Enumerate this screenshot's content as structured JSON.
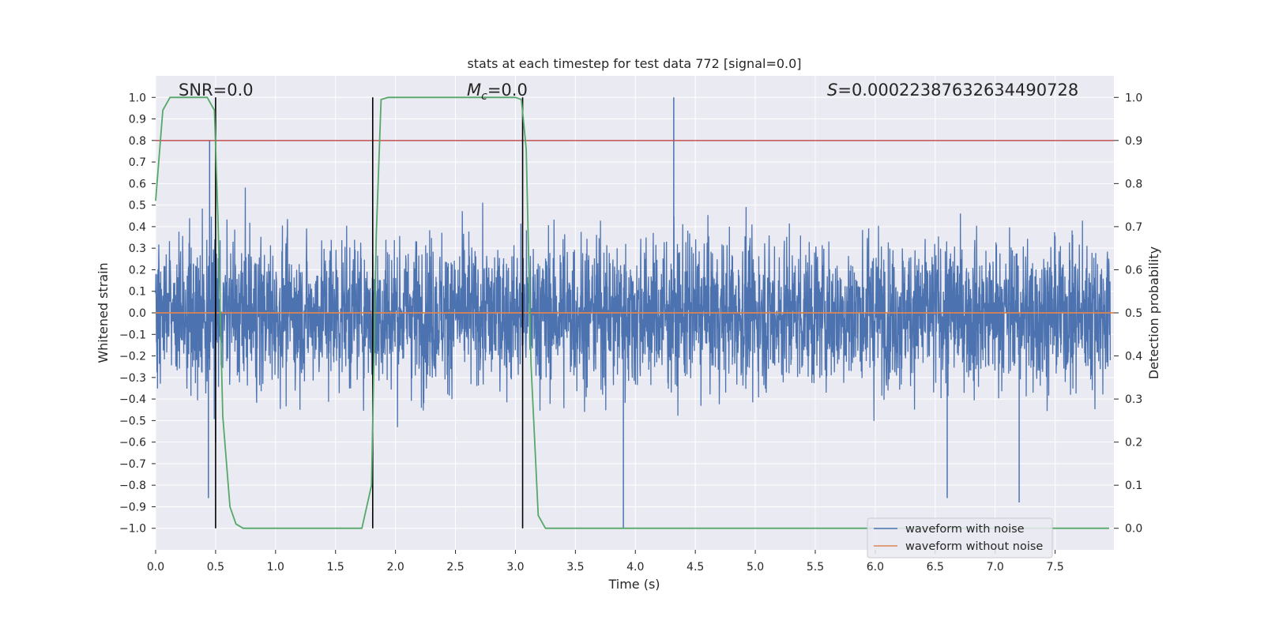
{
  "chart_data": {
    "type": "line",
    "title": "stats at each timestep for test data 772 [signal=0.0]",
    "xlabel": "Time (s)",
    "ylabel": "Whitened strain",
    "ylabel_right": "Detection probability",
    "xlim": [
      0.0,
      7.99
    ],
    "ylim": [
      -1.1,
      1.1
    ],
    "ylim_right": [
      -0.05,
      1.05
    ],
    "x_ticks": [
      0.0,
      0.5,
      1.0,
      1.5,
      2.0,
      2.5,
      3.0,
      3.5,
      4.0,
      4.5,
      5.0,
      5.5,
      6.0,
      6.5,
      7.0,
      7.5
    ],
    "x_tick_labels": [
      "0.0",
      "0.5",
      "1.0",
      "1.5",
      "2.0",
      "2.5",
      "3.0",
      "3.5",
      "4.0",
      "4.5",
      "5.0",
      "5.5",
      "6.0",
      "6.5",
      "7.0",
      "7.5"
    ],
    "y_ticks": [
      1.0,
      0.9,
      0.8,
      0.7,
      0.6,
      0.5,
      0.4,
      0.3,
      0.2,
      0.1,
      0.0,
      -0.1,
      -0.2,
      -0.3,
      -0.4,
      -0.5,
      -0.6,
      -0.7,
      -0.8,
      -0.9,
      -1.0
    ],
    "y_tick_labels": [
      "1.0",
      "0.9",
      "0.8",
      "0.7",
      "0.6",
      "0.5",
      "0.4",
      "0.3",
      "0.2",
      "0.1",
      "0.0",
      "−0.1",
      "−0.2",
      "−0.3",
      "−0.4",
      "−0.5",
      "−0.6",
      "−0.7",
      "−0.8",
      "−0.9",
      "−1.0"
    ],
    "y2_ticks": [
      1.0,
      0.9,
      0.8,
      0.7,
      0.6,
      0.5,
      0.4,
      0.3,
      0.2,
      0.1,
      0.0
    ],
    "y2_tick_labels": [
      "1.0",
      "0.9",
      "0.8",
      "0.7",
      "0.6",
      "0.5",
      "0.4",
      "0.3",
      "0.2",
      "0.1",
      "0.0"
    ],
    "annotations": {
      "snr": "SNR=0.0",
      "mc_symbol": "M",
      "mc_subscript": "c",
      "mc_value": "=0.0",
      "s_symbol": "S",
      "s_value": "=0.00022387632634490728"
    },
    "legend": {
      "position": "lower right",
      "entries": [
        {
          "label": "waveform with noise",
          "color": "#4c72b0"
        },
        {
          "label": "waveform without noise",
          "color": "#dd8452"
        }
      ]
    },
    "series": [
      {
        "name": "waveform with noise",
        "color": "#4c72b0",
        "description": "dense whitened noise, typical amplitude ~0.3, peaks to ~1.0",
        "noise_sigma": 0.17,
        "peak_spikes": [
          {
            "x": 0.45,
            "y": 0.8
          },
          {
            "x": 0.5,
            "y": -0.6
          },
          {
            "x": 4.32,
            "y": 1.0
          },
          {
            "x": 3.9,
            "y": -1.0
          },
          {
            "x": 0.44,
            "y": -0.86
          },
          {
            "x": 6.6,
            "y": -0.86
          },
          {
            "x": 7.2,
            "y": -0.88
          },
          {
            "x": 4.95,
            "y": -0.2
          }
        ]
      },
      {
        "name": "waveform without noise",
        "color": "#dd8452",
        "x": [
          0.0,
          7.99
        ],
        "y": [
          0.0,
          0.0
        ]
      },
      {
        "name": "detection probability",
        "color": "#55a868",
        "axis": "right",
        "x": [
          0.0,
          0.06,
          0.12,
          0.2,
          0.3,
          0.43,
          0.49,
          0.52,
          0.56,
          0.62,
          0.67,
          0.73,
          0.8,
          1.5,
          1.72,
          1.8,
          1.84,
          1.88,
          1.94,
          2.5,
          3.0,
          3.05,
          3.09,
          3.13,
          3.19,
          3.25,
          3.3,
          7.95
        ],
        "y": [
          0.76,
          0.97,
          1.0,
          1.0,
          1.0,
          1.0,
          0.97,
          0.72,
          0.26,
          0.05,
          0.01,
          0.0,
          0.0,
          0.0,
          0.0,
          0.1,
          0.68,
          0.995,
          1.0,
          1.0,
          1.0,
          0.995,
          0.88,
          0.38,
          0.03,
          0.0,
          0.0,
          0.0
        ]
      }
    ],
    "threshold_line": {
      "axis": "right",
      "y": 0.9,
      "color": "#c44e52"
    },
    "vertical_markers": {
      "x": [
        0.5,
        1.81,
        3.06
      ],
      "y_range": [
        -1.0,
        1.0
      ],
      "color": "#000000"
    }
  }
}
